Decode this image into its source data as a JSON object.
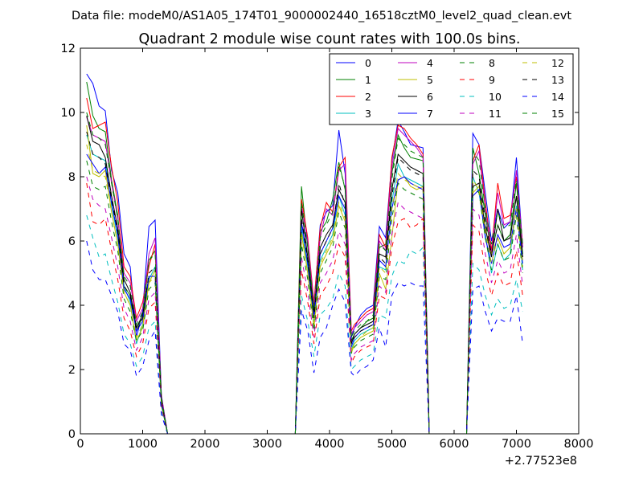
{
  "chart_data": {
    "type": "line",
    "suptitle": "Data file: modeM0/AS1A05_174T01_9000002440_16518cztM0_level2_quad_clean.evt",
    "title": "Quadrant 2 module wise count rates with 100.0s bins.",
    "xlabel": "",
    "ylabel": "",
    "x_offset_label": "+2.77523e8",
    "xlim": [
      0,
      8000
    ],
    "ylim": [
      0,
      12
    ],
    "xticks": [
      0,
      1000,
      2000,
      3000,
      4000,
      5000,
      6000,
      7000,
      8000
    ],
    "yticks": [
      0,
      2,
      4,
      6,
      8,
      10,
      12
    ],
    "xtick_labels": [
      "0",
      "1000",
      "2000",
      "3000",
      "4000",
      "5000",
      "6000",
      "7000",
      "8000"
    ],
    "ytick_labels": [
      "0",
      "2",
      "4",
      "6",
      "8",
      "10",
      "12"
    ],
    "grid": false,
    "legend_position": "top-right",
    "x": [
      100,
      200,
      300,
      400,
      500,
      600,
      700,
      800,
      900,
      1000,
      1100,
      1200,
      1300,
      1400,
      1500,
      2000,
      3000,
      3450,
      3550,
      3650,
      3750,
      3850,
      3950,
      4050,
      4150,
      4250,
      4350,
      4400,
      4500,
      4600,
      4700,
      4800,
      4900,
      5000,
      5100,
      5200,
      5300,
      5400,
      5500,
      5600,
      5700,
      6200,
      6300,
      6400,
      6500,
      6600,
      6700,
      6800,
      6900,
      7000,
      7100
    ],
    "series": [
      {
        "name": "0",
        "color": "#0000ff",
        "dash": "solid",
        "values": [
          11.2,
          10.9,
          10.2,
          10.05,
          8.2,
          7.5,
          5.6,
          5.2,
          3.0,
          3.8,
          6.45,
          6.65,
          1.2,
          0,
          0,
          0,
          0,
          0,
          6.5,
          6.0,
          4.0,
          6.5,
          6.9,
          7.1,
          9.45,
          8.1,
          3.0,
          3.3,
          3.7,
          3.9,
          4.0,
          6.45,
          6.1,
          8.5,
          9.75,
          9.4,
          9.0,
          8.95,
          8.9,
          0,
          0,
          0,
          9.35,
          9.0,
          7.5,
          6.0,
          7.0,
          6.4,
          6.6,
          8.6,
          5.8
        ]
      },
      {
        "name": "1",
        "color": "#008000",
        "dash": "solid",
        "values": [
          10.95,
          9.9,
          9.5,
          9.4,
          7.9,
          6.8,
          4.6,
          4.3,
          3.3,
          3.6,
          5.4,
          5.7,
          1.1,
          0,
          0,
          0,
          0,
          0,
          7.7,
          5.8,
          3.8,
          6.3,
          6.6,
          7.3,
          8.45,
          7.6,
          2.9,
          3.1,
          3.3,
          3.5,
          3.6,
          5.8,
          5.9,
          8.1,
          9.3,
          8.9,
          8.6,
          8.55,
          8.5,
          0,
          0,
          0,
          8.9,
          8.1,
          6.8,
          5.6,
          6.5,
          6.0,
          6.2,
          7.8,
          5.6
        ]
      },
      {
        "name": "2",
        "color": "#ff0000",
        "dash": "solid",
        "values": [
          10.45,
          9.5,
          9.6,
          9.7,
          8.3,
          7.2,
          5.2,
          4.9,
          3.6,
          4.1,
          5.2,
          5.9,
          1.15,
          0,
          0,
          0,
          0,
          0,
          7.3,
          6.1,
          4.1,
          6.4,
          7.2,
          6.9,
          8.3,
          8.6,
          3.2,
          3.4,
          3.6,
          3.8,
          3.9,
          6.2,
          5.8,
          8.6,
          9.6,
          9.5,
          9.2,
          9.0,
          8.7,
          0,
          0,
          0,
          8.5,
          9.0,
          7.2,
          5.7,
          7.8,
          6.7,
          6.8,
          8.0,
          5.9
        ]
      },
      {
        "name": "3",
        "color": "#00bfbf",
        "dash": "solid",
        "values": [
          9.3,
          8.7,
          8.6,
          8.5,
          7.1,
          6.1,
          4.6,
          4.1,
          2.8,
          3.4,
          4.8,
          5.2,
          1.0,
          0,
          0,
          0,
          0,
          0,
          6.4,
          5.2,
          3.4,
          5.4,
          5.8,
          6.2,
          7.4,
          6.8,
          2.6,
          2.9,
          3.1,
          3.2,
          3.3,
          5.2,
          5.1,
          7.2,
          8.4,
          8.0,
          7.9,
          7.8,
          7.7,
          0,
          0,
          0,
          8.0,
          7.5,
          6.2,
          5.0,
          5.9,
          5.4,
          5.6,
          7.1,
          5.1
        ]
      },
      {
        "name": "4",
        "color": "#bf00bf",
        "dash": "solid",
        "values": [
          9.85,
          9.3,
          9.2,
          9.1,
          7.8,
          6.7,
          5.0,
          4.7,
          3.5,
          3.9,
          5.6,
          6.1,
          1.1,
          0,
          0,
          0,
          0,
          0,
          7.1,
          6.0,
          4.0,
          6.1,
          7.0,
          6.8,
          8.2,
          8.4,
          3.1,
          3.3,
          3.5,
          3.7,
          3.8,
          6.0,
          5.7,
          8.3,
          9.5,
          9.3,
          9.1,
          8.9,
          8.6,
          0,
          0,
          0,
          8.4,
          8.8,
          7.0,
          5.6,
          7.5,
          6.5,
          6.6,
          8.2,
          5.8
        ]
      },
      {
        "name": "5",
        "color": "#bfbf00",
        "dash": "solid",
        "values": [
          9.6,
          8.1,
          8.0,
          8.2,
          6.9,
          5.9,
          4.4,
          4.0,
          2.9,
          3.3,
          4.7,
          5.1,
          0.95,
          0,
          0,
          0,
          0,
          0,
          6.2,
          5.0,
          3.3,
          5.2,
          5.6,
          6.0,
          7.1,
          6.6,
          2.5,
          2.8,
          3.0,
          3.1,
          3.2,
          5.0,
          4.5,
          6.1,
          7.9,
          8.0,
          7.7,
          7.6,
          7.7,
          0,
          0,
          0,
          7.5,
          7.7,
          6.4,
          5.6,
          6.1,
          5.6,
          5.8,
          7.0,
          5.4
        ]
      },
      {
        "name": "6",
        "color": "#000000",
        "dash": "solid",
        "values": [
          9.9,
          9.1,
          9.0,
          8.6,
          7.4,
          6.4,
          4.8,
          4.4,
          3.3,
          3.7,
          4.9,
          4.9,
          1.0,
          0,
          0,
          0,
          0,
          0,
          7.0,
          5.5,
          3.7,
          5.8,
          6.2,
          6.5,
          7.6,
          7.2,
          2.8,
          3.1,
          3.3,
          3.4,
          3.5,
          5.6,
          5.5,
          7.6,
          8.7,
          8.5,
          8.3,
          8.2,
          8.1,
          0,
          0,
          0,
          7.7,
          7.8,
          6.4,
          5.5,
          7.0,
          6.0,
          6.1,
          7.4,
          5.5
        ]
      },
      {
        "name": "7",
        "color": "#0000ff",
        "dash": "solid",
        "values": [
          8.7,
          8.4,
          8.1,
          8.3,
          7.2,
          6.2,
          4.5,
          4.2,
          3.2,
          3.5,
          4.9,
          4.9,
          1.0,
          0,
          0,
          0,
          0,
          0,
          6.6,
          5.3,
          3.6,
          5.6,
          6.0,
          6.4,
          7.4,
          7.0,
          2.7,
          3.0,
          3.2,
          3.3,
          3.4,
          5.4,
          5.2,
          7.0,
          7.9,
          8.0,
          7.8,
          7.7,
          7.6,
          0,
          0,
          0,
          7.4,
          7.6,
          6.1,
          5.3,
          6.2,
          5.8,
          5.9,
          7.0,
          5.3
        ]
      },
      {
        "name": "8",
        "color": "#008000",
        "dash": "dashed",
        "values": [
          8.5,
          7.7,
          7.6,
          7.7,
          6.6,
          5.7,
          4.2,
          3.8,
          2.9,
          3.2,
          4.5,
          4.7,
          0.9,
          0,
          0,
          0,
          0,
          0,
          5.9,
          4.8,
          3.2,
          5.0,
          5.4,
          5.8,
          6.9,
          6.4,
          2.5,
          2.7,
          2.9,
          3.0,
          3.1,
          4.9,
          4.8,
          6.7,
          7.8,
          7.6,
          7.5,
          7.4,
          7.3,
          0,
          0,
          0,
          7.7,
          7.5,
          6.1,
          5.1,
          5.9,
          5.4,
          5.5,
          6.8,
          5.0
        ]
      },
      {
        "name": "9",
        "color": "#ff0000",
        "dash": "dashed",
        "values": [
          7.8,
          6.6,
          6.5,
          6.7,
          5.7,
          4.8,
          3.6,
          3.2,
          2.4,
          2.8,
          3.9,
          4.1,
          0.8,
          0,
          0,
          0,
          0,
          0,
          5.1,
          4.1,
          2.8,
          4.3,
          4.6,
          5.0,
          5.9,
          5.5,
          2.2,
          2.4,
          2.6,
          2.7,
          2.8,
          4.3,
          4.2,
          5.8,
          6.6,
          6.7,
          6.4,
          6.5,
          6.7,
          0,
          0,
          0,
          6.5,
          6.3,
          5.1,
          4.3,
          5.0,
          4.6,
          4.7,
          5.7,
          4.3
        ]
      },
      {
        "name": "10",
        "color": "#00bfbf",
        "dash": "dashed",
        "values": [
          6.8,
          6.1,
          5.5,
          5.6,
          4.8,
          4.1,
          3.1,
          2.8,
          2.1,
          2.4,
          3.3,
          3.5,
          0.7,
          0,
          0,
          0,
          0,
          0,
          4.3,
          3.5,
          2.4,
          3.7,
          3.9,
          4.2,
          5.0,
          4.6,
          2.0,
          2.1,
          2.3,
          2.4,
          2.5,
          3.7,
          3.6,
          4.9,
          5.4,
          5.3,
          5.7,
          5.6,
          5.8,
          0,
          0,
          0,
          5.3,
          5.1,
          4.3,
          3.7,
          4.2,
          3.9,
          4.0,
          4.8,
          3.8
        ]
      },
      {
        "name": "11",
        "color": "#bf00bf",
        "dash": "dashed",
        "values": [
          8.0,
          7.3,
          7.1,
          7.0,
          6.1,
          5.2,
          3.9,
          3.5,
          2.6,
          3.0,
          4.2,
          4.4,
          0.85,
          0,
          0,
          0,
          0,
          0,
          5.5,
          4.4,
          3.0,
          4.7,
          5.0,
          5.4,
          6.3,
          5.9,
          2.3,
          2.5,
          2.7,
          2.8,
          2.9,
          4.6,
          4.4,
          6.2,
          7.2,
          7.0,
          6.9,
          6.8,
          6.7,
          0,
          0,
          0,
          7.0,
          6.8,
          5.6,
          4.7,
          5.4,
          5.0,
          5.1,
          6.2,
          4.6
        ]
      },
      {
        "name": "12",
        "color": "#bfbf00",
        "dash": "dashed",
        "values": [
          9.0,
          8.2,
          8.1,
          8.0,
          6.9,
          5.9,
          4.4,
          4.0,
          3.0,
          3.4,
          4.7,
          4.9,
          0.95,
          0,
          0,
          0,
          0,
          0,
          6.3,
          5.0,
          3.4,
          5.3,
          5.7,
          6.1,
          7.2,
          6.7,
          2.6,
          2.8,
          3.0,
          3.2,
          3.3,
          5.2,
          5.0,
          7.0,
          8.1,
          7.9,
          7.8,
          7.7,
          7.6,
          0,
          0,
          0,
          7.9,
          7.6,
          6.3,
          5.3,
          6.1,
          5.6,
          5.8,
          7.0,
          5.2
        ]
      },
      {
        "name": "13",
        "color": "#000000",
        "dash": "dashed",
        "values": [
          9.4,
          8.7,
          8.6,
          8.4,
          7.3,
          6.3,
          4.6,
          4.3,
          3.2,
          3.6,
          5.0,
          5.2,
          1.0,
          0,
          0,
          0,
          0,
          0,
          6.7,
          5.4,
          3.6,
          5.6,
          6.0,
          6.4,
          7.8,
          7.1,
          2.8,
          3.0,
          3.2,
          3.3,
          3.4,
          5.5,
          5.3,
          7.4,
          8.6,
          8.4,
          8.2,
          8.1,
          8.0,
          0,
          0,
          0,
          8.2,
          8.0,
          6.6,
          5.6,
          6.5,
          6.0,
          6.1,
          7.4,
          5.5
        ]
      },
      {
        "name": "14",
        "color": "#0000ff",
        "dash": "dashed",
        "values": [
          6.0,
          5.1,
          4.8,
          4.8,
          4.3,
          3.8,
          2.8,
          2.6,
          1.8,
          2.1,
          2.9,
          3.2,
          0.6,
          0,
          0,
          0,
          0,
          0,
          3.85,
          3.2,
          1.9,
          3.0,
          3.3,
          4.0,
          4.5,
          4.1,
          1.9,
          1.8,
          2.0,
          2.1,
          2.3,
          3.3,
          2.7,
          4.3,
          4.7,
          4.6,
          4.7,
          4.6,
          4.6,
          0,
          0,
          0,
          4.5,
          4.6,
          3.8,
          3.2,
          3.6,
          3.5,
          3.5,
          4.3,
          2.8
        ]
      },
      {
        "name": "15",
        "color": "#008000",
        "dash": "dashed",
        "values": [
          10.0,
          9.3,
          9.2,
          9.0,
          7.8,
          6.7,
          4.9,
          4.6,
          3.4,
          3.8,
          5.4,
          5.6,
          1.1,
          0,
          0,
          0,
          0,
          0,
          7.2,
          5.8,
          3.9,
          6.1,
          6.5,
          6.9,
          8.3,
          7.7,
          3.0,
          3.2,
          3.4,
          3.5,
          3.7,
          5.9,
          5.7,
          7.9,
          9.2,
          9.0,
          8.8,
          8.7,
          8.6,
          0,
          0,
          0,
          8.8,
          8.5,
          7.0,
          5.9,
          6.9,
          6.4,
          6.5,
          7.9,
          5.9
        ]
      }
    ]
  }
}
